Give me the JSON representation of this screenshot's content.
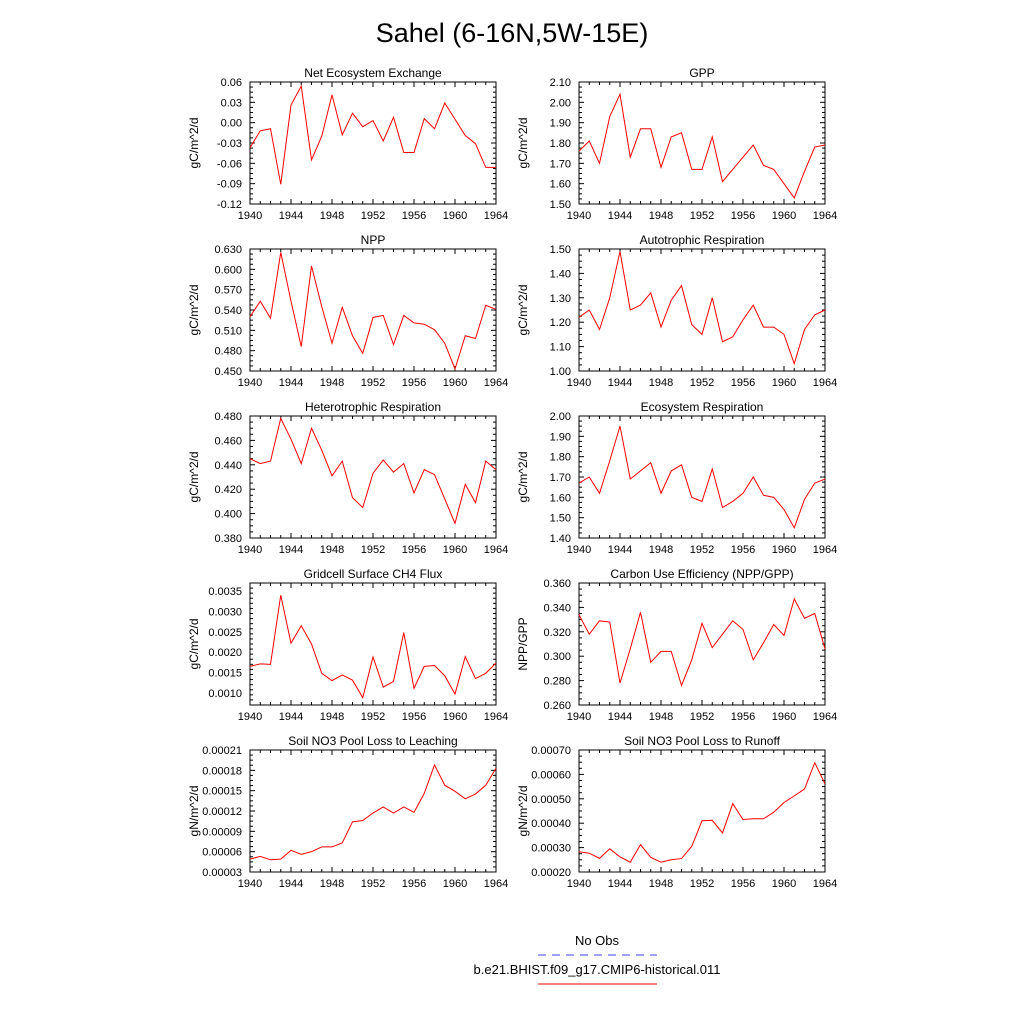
{
  "figure": {
    "title": "Sahel (6-16N,5W-15E)",
    "legend": {
      "placement": "bottom-center",
      "entries": [
        {
          "label": "No Obs",
          "color": "#6666ee",
          "style": "dashed"
        },
        {
          "label": "b.e21.BHIST.f09_g17.CMIP6-historical.011",
          "color": "#ee3333",
          "style": "solid"
        }
      ]
    }
  },
  "chart_data": [
    {
      "type": "line",
      "title": "Net Ecosystem Exchange",
      "ylabel": "gC/m^2/d",
      "xlim": [
        1940,
        1964
      ],
      "ylim": [
        -0.12,
        0.06
      ],
      "x_ticks": [
        "1940",
        "1944",
        "1948",
        "1952",
        "1956",
        "1960",
        "1964"
      ],
      "y_ticks": [
        "-0.12",
        "-0.09",
        "-0.06",
        "-0.03",
        "0.00",
        "0.03",
        "0.06"
      ],
      "series": [
        {
          "color": "#ff0000",
          "x": [
            1940,
            1941,
            1942,
            1943,
            1944,
            1945,
            1946,
            1947,
            1948,
            1949,
            1950,
            1951,
            1952,
            1953,
            1954,
            1955,
            1956,
            1957,
            1958,
            1959,
            1960,
            1961,
            1962,
            1963,
            1964
          ],
          "values": [
            -0.037,
            -0.012,
            -0.009,
            -0.091,
            0.026,
            0.054,
            -0.055,
            -0.02,
            0.041,
            -0.018,
            0.014,
            -0.006,
            0.003,
            -0.027,
            0.008,
            -0.044,
            -0.044,
            0.006,
            -0.009,
            0.029,
            0.005,
            -0.019,
            -0.031,
            -0.066,
            -0.066
          ]
        }
      ]
    },
    {
      "type": "line",
      "title": "GPP",
      "ylabel": "gC/m^2/d",
      "xlim": [
        1940,
        1964
      ],
      "ylim": [
        1.5,
        2.1
      ],
      "x_ticks": [
        "1940",
        "1944",
        "1948",
        "1952",
        "1956",
        "1960",
        "1964"
      ],
      "y_ticks": [
        "1.50",
        "1.60",
        "1.70",
        "1.80",
        "1.90",
        "2.00",
        "2.10"
      ],
      "series": [
        {
          "color": "#ff0000",
          "x": [
            1940,
            1941,
            1942,
            1943,
            1944,
            1945,
            1946,
            1947,
            1948,
            1949,
            1950,
            1951,
            1952,
            1953,
            1954,
            1955,
            1956,
            1957,
            1958,
            1959,
            1960,
            1961,
            1962,
            1963,
            1964
          ],
          "values": [
            1.76,
            1.81,
            1.7,
            1.93,
            2.04,
            1.73,
            1.87,
            1.87,
            1.68,
            1.83,
            1.85,
            1.67,
            1.67,
            1.83,
            1.61,
            1.67,
            1.73,
            1.79,
            1.69,
            1.67,
            1.6,
            1.53,
            1.66,
            1.78,
            1.79
          ]
        }
      ]
    },
    {
      "type": "line",
      "title": "NPP",
      "ylabel": "gC/m^2/d",
      "xlim": [
        1940,
        1964
      ],
      "ylim": [
        0.45,
        0.63
      ],
      "x_ticks": [
        "1940",
        "1944",
        "1948",
        "1952",
        "1956",
        "1960",
        "1964"
      ],
      "y_ticks": [
        "0.450",
        "0.480",
        "0.510",
        "0.540",
        "0.570",
        "0.600",
        "0.630"
      ],
      "series": [
        {
          "color": "#ff0000",
          "x": [
            1940,
            1941,
            1942,
            1943,
            1944,
            1945,
            1946,
            1947,
            1948,
            1949,
            1950,
            1951,
            1952,
            1953,
            1954,
            1955,
            1956,
            1957,
            1958,
            1959,
            1960,
            1961,
            1962,
            1963,
            1964
          ],
          "values": [
            0.53,
            0.553,
            0.528,
            0.625,
            0.553,
            0.486,
            0.605,
            0.545,
            0.491,
            0.544,
            0.502,
            0.476,
            0.529,
            0.532,
            0.489,
            0.532,
            0.521,
            0.519,
            0.511,
            0.491,
            0.453,
            0.502,
            0.498,
            0.547,
            0.541
          ]
        }
      ]
    },
    {
      "type": "line",
      "title": "Autotrophic Respiration",
      "ylabel": "gC/m^2/d",
      "xlim": [
        1940,
        1964
      ],
      "ylim": [
        1.0,
        1.5
      ],
      "x_ticks": [
        "1940",
        "1944",
        "1948",
        "1952",
        "1956",
        "1960",
        "1964"
      ],
      "y_ticks": [
        "1.00",
        "1.10",
        "1.20",
        "1.30",
        "1.40",
        "1.50"
      ],
      "series": [
        {
          "color": "#ff0000",
          "x": [
            1940,
            1941,
            1942,
            1943,
            1944,
            1945,
            1946,
            1947,
            1948,
            1949,
            1950,
            1951,
            1952,
            1953,
            1954,
            1955,
            1956,
            1957,
            1958,
            1959,
            1960,
            1961,
            1962,
            1963,
            1964
          ],
          "values": [
            1.22,
            1.25,
            1.17,
            1.3,
            1.49,
            1.25,
            1.27,
            1.32,
            1.18,
            1.29,
            1.35,
            1.19,
            1.15,
            1.3,
            1.12,
            1.14,
            1.21,
            1.27,
            1.18,
            1.18,
            1.15,
            1.03,
            1.17,
            1.23,
            1.25
          ]
        }
      ]
    },
    {
      "type": "line",
      "title": "Heterotrophic Respiration",
      "ylabel": "gC/m^2/d",
      "xlim": [
        1940,
        1964
      ],
      "ylim": [
        0.38,
        0.48
      ],
      "x_ticks": [
        "1940",
        "1944",
        "1948",
        "1952",
        "1956",
        "1960",
        "1964"
      ],
      "y_ticks": [
        "0.380",
        "0.400",
        "0.420",
        "0.440",
        "0.460",
        "0.480"
      ],
      "series": [
        {
          "color": "#ff0000",
          "x": [
            1940,
            1941,
            1942,
            1943,
            1944,
            1945,
            1946,
            1947,
            1948,
            1949,
            1950,
            1951,
            1952,
            1953,
            1954,
            1955,
            1956,
            1957,
            1958,
            1959,
            1960,
            1961,
            1962,
            1963,
            1964
          ],
          "values": [
            0.445,
            0.441,
            0.443,
            0.478,
            0.461,
            0.441,
            0.47,
            0.452,
            0.431,
            0.443,
            0.413,
            0.405,
            0.433,
            0.444,
            0.434,
            0.441,
            0.417,
            0.436,
            0.432,
            0.412,
            0.392,
            0.424,
            0.409,
            0.443,
            0.436
          ]
        }
      ]
    },
    {
      "type": "line",
      "title": "Ecosystem Respiration",
      "ylabel": "gC/m^2/d",
      "xlim": [
        1940,
        1964
      ],
      "ylim": [
        1.4,
        2.0
      ],
      "x_ticks": [
        "1940",
        "1944",
        "1948",
        "1952",
        "1956",
        "1960",
        "1964"
      ],
      "y_ticks": [
        "1.40",
        "1.50",
        "1.60",
        "1.70",
        "1.80",
        "1.90",
        "2.00"
      ],
      "series": [
        {
          "color": "#ff0000",
          "x": [
            1940,
            1941,
            1942,
            1943,
            1944,
            1945,
            1946,
            1947,
            1948,
            1949,
            1950,
            1951,
            1952,
            1953,
            1954,
            1955,
            1956,
            1957,
            1958,
            1959,
            1960,
            1961,
            1962,
            1963,
            1964
          ],
          "values": [
            1.67,
            1.7,
            1.62,
            1.78,
            1.95,
            1.69,
            1.73,
            1.77,
            1.62,
            1.73,
            1.76,
            1.6,
            1.58,
            1.74,
            1.55,
            1.58,
            1.62,
            1.7,
            1.61,
            1.6,
            1.54,
            1.45,
            1.59,
            1.67,
            1.69
          ]
        }
      ]
    },
    {
      "type": "line",
      "title": "Gridcell Surface CH4 Flux",
      "ylabel": "gC/m^2/d",
      "xlim": [
        1940,
        1964
      ],
      "ylim": [
        0.0007,
        0.0037
      ],
      "x_ticks": [
        "1940",
        "1944",
        "1948",
        "1952",
        "1956",
        "1960",
        "1964"
      ],
      "y_ticks": [
        "0.0010",
        "0.0015",
        "0.0020",
        "0.0025",
        "0.0030",
        "0.0035"
      ],
      "series": [
        {
          "color": "#ff0000",
          "x": [
            1940,
            1941,
            1942,
            1943,
            1944,
            1945,
            1946,
            1947,
            1948,
            1949,
            1950,
            1951,
            1952,
            1953,
            1954,
            1955,
            1956,
            1957,
            1958,
            1959,
            1960,
            1961,
            1962,
            1963,
            1964
          ],
          "values": [
            0.00165,
            0.00171,
            0.0017,
            0.0034,
            0.00222,
            0.00265,
            0.0022,
            0.00148,
            0.0013,
            0.00144,
            0.00131,
            0.00088,
            0.00188,
            0.00114,
            0.00128,
            0.00248,
            0.00111,
            0.00165,
            0.00167,
            0.00142,
            0.00097,
            0.00189,
            0.00135,
            0.00148,
            0.00173
          ]
        }
      ]
    },
    {
      "type": "line",
      "title": "Carbon Use Efficiency (NPP/GPP)",
      "ylabel": "NPP/GPP",
      "xlim": [
        1940,
        1964
      ],
      "ylim": [
        0.26,
        0.36
      ],
      "x_ticks": [
        "1940",
        "1944",
        "1948",
        "1952",
        "1956",
        "1960",
        "1964"
      ],
      "y_ticks": [
        "0.260",
        "0.280",
        "0.300",
        "0.320",
        "0.340",
        "0.360"
      ],
      "series": [
        {
          "color": "#ff0000",
          "x": [
            1940,
            1941,
            1942,
            1943,
            1944,
            1945,
            1946,
            1947,
            1948,
            1949,
            1950,
            1951,
            1952,
            1953,
            1954,
            1955,
            1956,
            1957,
            1958,
            1959,
            1960,
            1961,
            1962,
            1963,
            1964
          ],
          "values": [
            0.334,
            0.318,
            0.329,
            0.328,
            0.278,
            0.306,
            0.336,
            0.295,
            0.304,
            0.304,
            0.276,
            0.297,
            0.327,
            0.307,
            0.318,
            0.329,
            0.322,
            0.297,
            0.311,
            0.326,
            0.317,
            0.347,
            0.331,
            0.335,
            0.306
          ]
        }
      ]
    },
    {
      "type": "line",
      "title": "Soil NO3 Pool Loss to Leaching",
      "ylabel": "gN/m^2/d",
      "xlim": [
        1940,
        1964
      ],
      "ylim": [
        3e-05,
        0.00021
      ],
      "x_ticks": [
        "1940",
        "1944",
        "1948",
        "1952",
        "1956",
        "1960",
        "1964"
      ],
      "y_ticks": [
        "0.00003",
        "0.00006",
        "0.00009",
        "0.00012",
        "0.00015",
        "0.00018",
        "0.00021"
      ],
      "series": [
        {
          "color": "#ff0000",
          "x": [
            1940,
            1941,
            1942,
            1943,
            1944,
            1945,
            1946,
            1947,
            1948,
            1949,
            1950,
            1951,
            1952,
            1953,
            1954,
            1955,
            1956,
            1957,
            1958,
            1959,
            1960,
            1961,
            1962,
            1963,
            1964
          ],
          "values": [
            4.9e-05,
            5.3e-05,
            4.8e-05,
            4.9e-05,
            6.2e-05,
            5.6e-05,
            6e-05,
            6.7e-05,
            6.7e-05,
            7.3e-05,
            0.000104,
            0.000106,
            0.000117,
            0.000126,
            0.000117,
            0.000126,
            0.000118,
            0.000146,
            0.000188,
            0.000158,
            0.000149,
            0.000138,
            0.000145,
            0.000158,
            0.000183
          ]
        }
      ]
    },
    {
      "type": "line",
      "title": "Soil NO3 Pool Loss to Runoff",
      "ylabel": "gN/m^2/d",
      "xlim": [
        1940,
        1964
      ],
      "ylim": [
        0.0002,
        0.0007
      ],
      "x_ticks": [
        "1940",
        "1944",
        "1948",
        "1952",
        "1956",
        "1960",
        "1964"
      ],
      "y_ticks": [
        "0.00020",
        "0.00030",
        "0.00040",
        "0.00050",
        "0.00060",
        "0.00070"
      ],
      "series": [
        {
          "color": "#ff0000",
          "x": [
            1940,
            1941,
            1942,
            1943,
            1944,
            1945,
            1946,
            1947,
            1948,
            1949,
            1950,
            1951,
            1952,
            1953,
            1954,
            1955,
            1956,
            1957,
            1958,
            1959,
            1960,
            1961,
            1962,
            1963,
            1964
          ],
          "values": [
            0.000283,
            0.000277,
            0.000256,
            0.000295,
            0.000262,
            0.00024,
            0.000312,
            0.00026,
            0.00024,
            0.00025,
            0.000255,
            0.000305,
            0.00041,
            0.000412,
            0.00036,
            0.00048,
            0.000415,
            0.000418,
            0.000418,
            0.000445,
            0.000485,
            0.000512,
            0.00054,
            0.000648,
            0.000561
          ]
        }
      ]
    }
  ]
}
